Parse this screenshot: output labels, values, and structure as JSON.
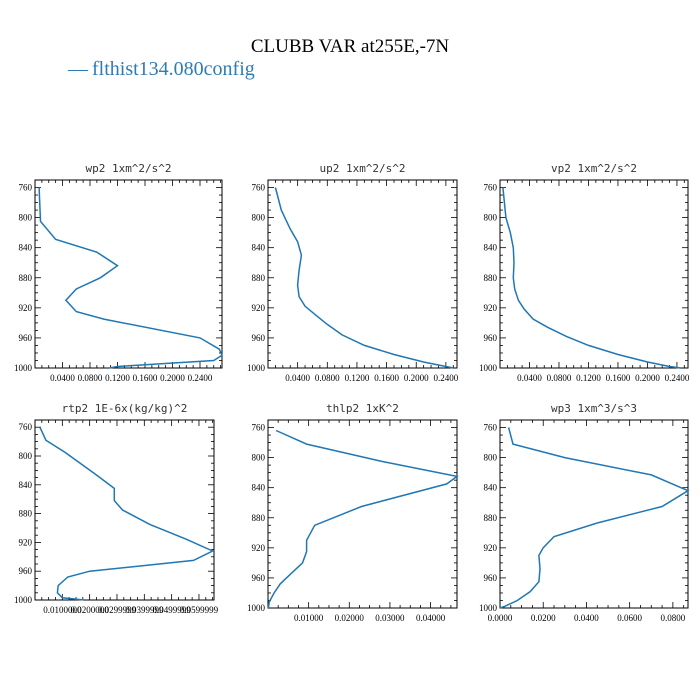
{
  "title": "CLUBB VAR at255E,-7N",
  "legend": {
    "label": "flthist134.080config",
    "color": "#1f77b4"
  },
  "chart_data": [
    {
      "type": "line",
      "title": "wp2  1xm^2/s^2",
      "ylim": [
        1000,
        750
      ],
      "yticks": [
        760,
        800,
        840,
        880,
        920,
        960,
        1000
      ],
      "xlim": [
        0.0,
        0.272
      ],
      "xticks": [
        0.04,
        0.08,
        0.12,
        0.16,
        0.2,
        0.24
      ],
      "xticklabels": [
        "0.0400",
        "0.0800",
        "0.1200",
        "0.1600",
        "0.2000",
        "0.2400"
      ],
      "x": [
        0.006,
        0.008,
        0.03,
        0.09,
        0.12,
        0.095,
        0.06,
        0.045,
        0.06,
        0.1,
        0.24,
        0.268,
        0.272,
        0.26,
        0.12,
        0.108
      ],
      "y": [
        760,
        805,
        829,
        846,
        864,
        880,
        895,
        910,
        925,
        935,
        960,
        975,
        983,
        990,
        998,
        1000
      ]
    },
    {
      "type": "line",
      "title": "up2  1xm^2/s^2",
      "ylim": [
        1000,
        750
      ],
      "yticks": [
        760,
        800,
        840,
        880,
        920,
        960,
        1000
      ],
      "xlim": [
        0.0,
        0.255
      ],
      "xticks": [
        0.04,
        0.08,
        0.12,
        0.16,
        0.2,
        0.24
      ],
      "xticklabels": [
        "0.0400",
        "0.0800",
        "0.1200",
        "0.1600",
        "0.2000",
        "0.2400"
      ],
      "x": [
        0.01,
        0.018,
        0.03,
        0.04,
        0.045,
        0.042,
        0.04,
        0.042,
        0.05,
        0.065,
        0.08,
        0.1,
        0.13,
        0.17,
        0.21,
        0.24,
        0.25
      ],
      "y": [
        760,
        790,
        815,
        832,
        850,
        870,
        890,
        905,
        918,
        930,
        942,
        956,
        970,
        982,
        992,
        998,
        1000
      ]
    },
    {
      "type": "line",
      "title": "vp2  1xm^2/s^2",
      "ylim": [
        1000,
        750
      ],
      "yticks": [
        760,
        800,
        840,
        880,
        920,
        960,
        1000
      ],
      "xlim": [
        0.0,
        0.255
      ],
      "xticks": [
        0.04,
        0.08,
        0.12,
        0.16,
        0.2,
        0.24
      ],
      "xticklabels": [
        "0.0400",
        "0.0800",
        "0.1200",
        "0.1600",
        "0.2000",
        "0.2400"
      ],
      "x": [
        0.004,
        0.008,
        0.014,
        0.018,
        0.019,
        0.018,
        0.02,
        0.025,
        0.033,
        0.045,
        0.065,
        0.09,
        0.12,
        0.16,
        0.2,
        0.23,
        0.245
      ],
      "y": [
        760,
        800,
        820,
        840,
        860,
        880,
        895,
        910,
        922,
        935,
        946,
        958,
        970,
        982,
        992,
        998,
        1000
      ]
    },
    {
      "type": "line",
      "title": "rtp2  1E-6x(kg/kg)^2",
      "ylim": [
        1000,
        750
      ],
      "yticks": [
        760,
        800,
        840,
        880,
        920,
        960,
        1000
      ],
      "xlim": [
        0.0,
        0.0655
      ],
      "xticks": [
        0.01,
        0.02,
        0.03,
        0.04,
        0.05,
        0.06
      ],
      "xticklabels": [
        "0.0100000",
        "0.0200000",
        "0.0299999",
        "0.0399999",
        "0.0499999",
        "0.0599999"
      ],
      "x": [
        0.0018,
        0.004,
        0.011,
        0.022,
        0.029,
        0.029,
        0.032,
        0.042,
        0.055,
        0.065,
        0.058,
        0.02,
        0.012,
        0.0085,
        0.0082,
        0.01,
        0.018
      ],
      "y": [
        760,
        778,
        795,
        825,
        845,
        862,
        875,
        895,
        915,
        932,
        945,
        960,
        968,
        980,
        990,
        997,
        1000
      ]
    },
    {
      "type": "line",
      "title": "thlp2  1xK^2",
      "ylim": [
        1000,
        750
      ],
      "yticks": [
        760,
        800,
        840,
        880,
        920,
        960,
        1000
      ],
      "xlim": [
        0.0,
        0.0465
      ],
      "xticks": [
        0.01,
        0.02,
        0.03,
        0.04
      ],
      "xticklabels": [
        "0.01000",
        "0.02000",
        "0.03000",
        "0.04000"
      ],
      "x": [
        0.002,
        0.0095,
        0.028,
        0.0465,
        0.044,
        0.023,
        0.0115,
        0.0095,
        0.0095,
        0.0085,
        0.0055,
        0.003,
        0.0015,
        0.0003,
        0.0001
      ],
      "y": [
        764,
        782,
        805,
        825,
        835,
        865,
        890,
        910,
        925,
        940,
        955,
        968,
        980,
        992,
        1000
      ]
    },
    {
      "type": "line",
      "title": "wp3  1xm^3/s^3",
      "ylim": [
        1000,
        750
      ],
      "yticks": [
        760,
        800,
        840,
        880,
        920,
        960,
        1000
      ],
      "xlim": [
        0.0,
        0.087
      ],
      "xticks": [
        0.0,
        0.02,
        0.04,
        0.06,
        0.08
      ],
      "xticklabels": [
        "0.0000",
        "0.0200",
        "0.0400",
        "0.0600",
        "0.0800"
      ],
      "x": [
        0.004,
        0.006,
        0.03,
        0.07,
        0.087,
        0.075,
        0.045,
        0.025,
        0.02,
        0.018,
        0.0185,
        0.018,
        0.014,
        0.008,
        0.002,
        0.0
      ],
      "y": [
        760,
        782,
        800,
        823,
        844,
        865,
        887,
        905,
        920,
        930,
        948,
        965,
        978,
        990,
        998,
        1000
      ]
    }
  ]
}
